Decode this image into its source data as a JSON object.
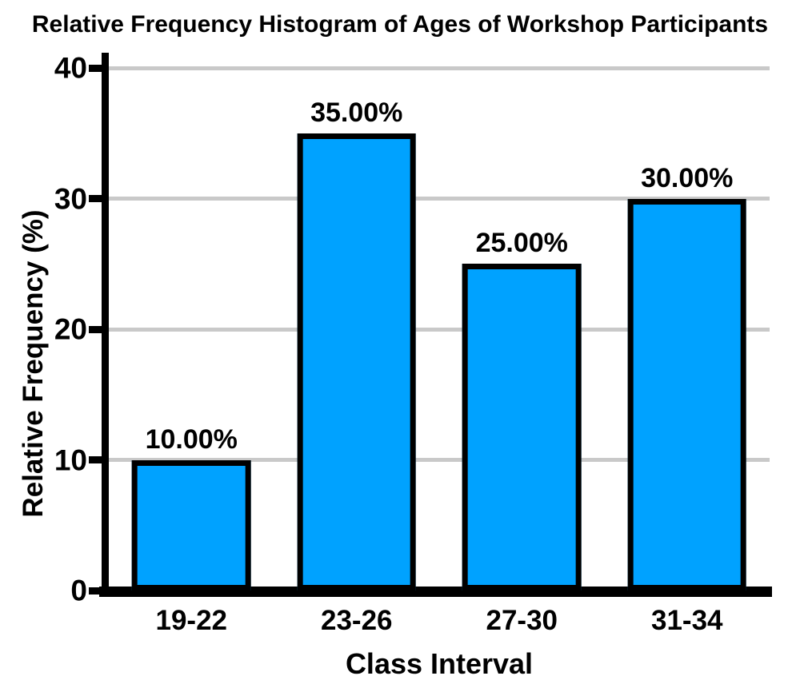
{
  "chart_data": {
    "type": "bar",
    "title": "Relative Frequency Histogram of Ages of Workshop Participants",
    "xlabel": "Class Interval",
    "ylabel": "Relative Frequency (%)",
    "categories": [
      "19-22",
      "23-26",
      "27-30",
      "31-34"
    ],
    "values": [
      10,
      35,
      25,
      30
    ],
    "bar_labels": [
      "10.00%",
      "35.00%",
      "25.00%",
      "30.00%"
    ],
    "yticks": [
      0,
      10,
      20,
      30,
      40
    ],
    "ylim": [
      0,
      40
    ],
    "grid": true,
    "legend_position": "none",
    "colors": {
      "bar_fill": "#00A2FF",
      "bar_border": "#000000",
      "gridline": "#C9C9C9",
      "axis": "#000000",
      "text": "#000000",
      "background": "#FFFFFF"
    }
  }
}
